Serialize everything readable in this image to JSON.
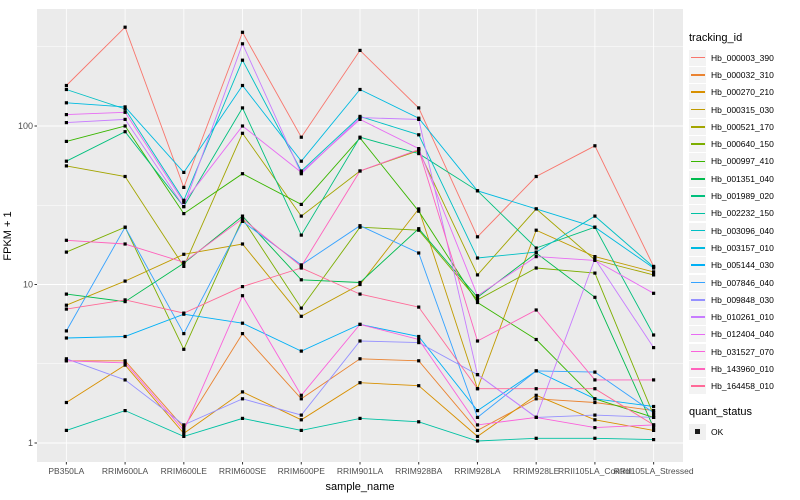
{
  "figure": {
    "panel_background": "#EBEBEB",
    "grid_color": "#FFFFFF",
    "axis_text_color": "#4D4D4D",
    "tick_mark_color": "#333333",
    "point_color": "#000000"
  },
  "legend": {
    "color_title": "tracking_id",
    "shape_title": "quant_status",
    "shape_items": [
      {
        "label": "OK",
        "shape": "filled-square-icon"
      }
    ]
  },
  "chart_data": {
    "type": "line",
    "title": "",
    "xlabel": "sample_name",
    "ylabel": "FPKM + 1",
    "y_scale": "log10",
    "ylim": [
      0.76,
      540
    ],
    "y_ticks": [
      1,
      10,
      100
    ],
    "y_minor_ticks": [
      3.162,
      31.62,
      316.2
    ],
    "grid": true,
    "legend_position": "right",
    "point_shape": "filled-square",
    "categories": [
      "PB350LA",
      "RRIM600LA",
      "RRIM600LE",
      "RRIM600SE",
      "RRIM600PE",
      "RRIM901LA",
      "RRIM928BA",
      "RRIM928LA",
      "RRIM928LE",
      "RRII105LA_Control",
      "RRII105LA_Stressed"
    ],
    "series": [
      {
        "name": "Hb_000003_390",
        "color": "#F8766D",
        "values": [
          180,
          420,
          41,
          390,
          85,
          300,
          130,
          20,
          48,
          75,
          13
        ]
      },
      {
        "name": "Hb_000032_310",
        "color": "#EA8331",
        "values": [
          3.3,
          3.3,
          1.25,
          4.9,
          1.9,
          3.4,
          3.3,
          1.2,
          1.9,
          1.8,
          1.6
        ]
      },
      {
        "name": "Hb_000270_210",
        "color": "#D89000",
        "values": [
          1.8,
          3.1,
          1.15,
          2.1,
          1.4,
          2.4,
          2.3,
          1.1,
          2.0,
          1.4,
          1.2
        ]
      },
      {
        "name": "Hb_000315_030",
        "color": "#C09B00",
        "values": [
          7.4,
          10.5,
          15.5,
          18,
          6.3,
          10,
          30,
          2.2,
          22,
          15,
          12
        ]
      },
      {
        "name": "Hb_000521_170",
        "color": "#A3A500",
        "values": [
          56,
          48,
          13,
          90,
          27,
          52,
          70,
          11.5,
          30,
          14.3,
          11.5
        ]
      },
      {
        "name": "Hb_000640_150",
        "color": "#7CAE00",
        "values": [
          16,
          23,
          3.9,
          26,
          7.1,
          23,
          22,
          8.0,
          12.7,
          11.8,
          1.5
        ]
      },
      {
        "name": "Hb_000997_410",
        "color": "#39B600",
        "values": [
          80,
          100,
          28,
          50,
          32,
          84,
          29,
          7.7,
          4.5,
          1.9,
          1.45
        ]
      },
      {
        "name": "Hb_001351_040",
        "color": "#00BB4E",
        "values": [
          8.7,
          7.8,
          13.6,
          27,
          10.7,
          10.3,
          22.5,
          8.3,
          15.8,
          8.3,
          1.25
        ]
      },
      {
        "name": "Hb_001989_020",
        "color": "#00BF7D",
        "values": [
          60,
          92,
          31,
          130,
          20.5,
          85,
          67,
          39,
          17,
          23,
          4.8
        ]
      },
      {
        "name": "Hb_002232_150",
        "color": "#00C1A3",
        "values": [
          1.2,
          1.6,
          1.1,
          1.43,
          1.2,
          1.43,
          1.36,
          1.03,
          1.07,
          1.07,
          1.05
        ]
      },
      {
        "name": "Hb_003096_040",
        "color": "#00BFC4",
        "values": [
          170,
          128,
          34,
          260,
          52,
          115,
          88,
          14.7,
          16,
          27,
          12.9
        ]
      },
      {
        "name": "Hb_003157_010",
        "color": "#00BAE0",
        "values": [
          140,
          132,
          51,
          180,
          60,
          170,
          112,
          39,
          30,
          23,
          12.7
        ]
      },
      {
        "name": "Hb_005144_030",
        "color": "#00B0F6",
        "values": [
          4.6,
          4.7,
          6.5,
          5.7,
          3.8,
          5.6,
          4.7,
          1.6,
          2.85,
          1.9,
          1.7
        ]
      },
      {
        "name": "Hb_007846_040",
        "color": "#35A2FF",
        "values": [
          5.1,
          23,
          4.9,
          25,
          13.3,
          23.5,
          15.8,
          1.45,
          2.85,
          2.8,
          1.55
        ]
      },
      {
        "name": "Hb_009848_030",
        "color": "#9590FF",
        "values": [
          3.4,
          2.5,
          1.3,
          1.9,
          1.5,
          4.4,
          4.3,
          2.7,
          1.45,
          1.5,
          1.45
        ]
      },
      {
        "name": "Hb_010261_010",
        "color": "#C77CFF",
        "values": [
          105,
          110,
          31,
          330,
          50,
          113,
          110,
          2.7,
          1.45,
          14.5,
          4.0
        ]
      },
      {
        "name": "Hb_012404_040",
        "color": "#E76BF3",
        "values": [
          118,
          122,
          33,
          100,
          51,
          110,
          72,
          8.5,
          15,
          14.2,
          8.8
        ]
      },
      {
        "name": "Hb_031527_070",
        "color": "#FA62DB",
        "values": [
          3.3,
          3.2,
          1.2,
          8.5,
          2.0,
          5.6,
          4.5,
          1.3,
          1.45,
          1.25,
          1.3
        ]
      },
      {
        "name": "Hb_143960_010",
        "color": "#FF62BC",
        "values": [
          19,
          18,
          13.8,
          26,
          13,
          52,
          71,
          4.4,
          6.9,
          2.5,
          2.5
        ]
      },
      {
        "name": "Hb_164458_010",
        "color": "#FF6A98",
        "values": [
          7.0,
          8.0,
          6.6,
          9.7,
          12.7,
          8.7,
          7.2,
          2.2,
          2.2,
          2.2,
          1.3
        ]
      }
    ]
  }
}
